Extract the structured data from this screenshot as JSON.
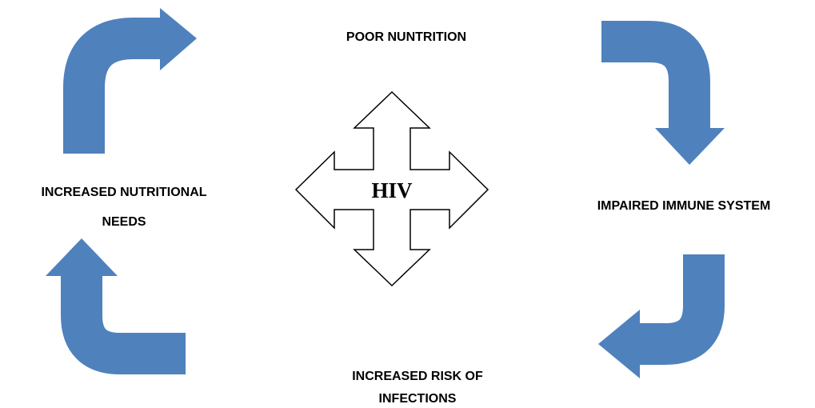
{
  "center": {
    "label": "HIV"
  },
  "nodes": [
    {
      "lines": [
        "POOR NUNTRITION"
      ]
    },
    {
      "lines": [
        "IMPAIRED IMMUNE SYSTEM"
      ]
    },
    {
      "lines": [
        "INCREASED RISK OF",
        "INFECTIONS"
      ]
    },
    {
      "lines": [
        "INCREASED NUTRITIONAL",
        "NEEDS"
      ]
    }
  ]
}
